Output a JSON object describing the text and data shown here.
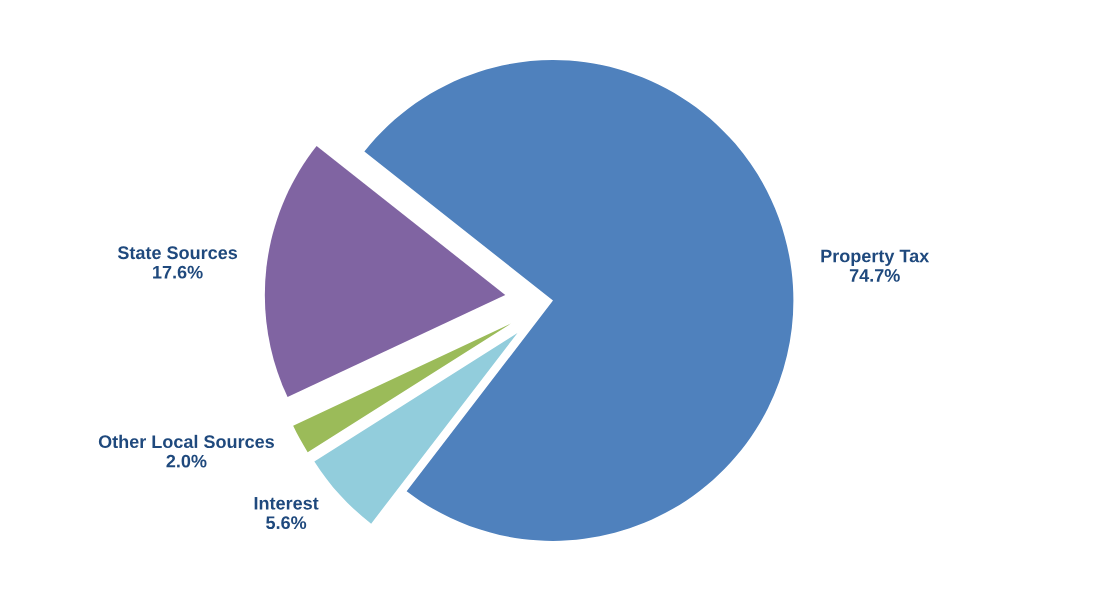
{
  "chart_data": {
    "type": "pie",
    "categories": [
      "Property Tax",
      "State Sources",
      "Other Local Sources",
      "Interest"
    ],
    "values": [
      74.7,
      17.6,
      2.0,
      5.6
    ],
    "value_labels": [
      "74.7%",
      "17.6%",
      "2.0%",
      "5.6%"
    ],
    "colors": [
      "#4f81bd",
      "#8064a2",
      "#9bbb59",
      "#92cddc"
    ]
  }
}
